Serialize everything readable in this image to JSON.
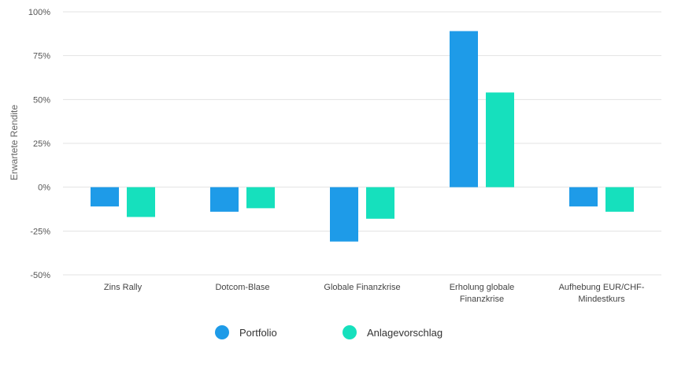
{
  "chart_data": {
    "type": "bar",
    "ylabel": "Erwartete Rendite",
    "ylim": [
      -50,
      100
    ],
    "yticks": [
      100,
      75,
      50,
      25,
      0,
      -25,
      -50
    ],
    "ytick_labels": [
      "100%",
      "75%",
      "50%",
      "25%",
      "0%",
      "-25%",
      "-50%"
    ],
    "grid": true,
    "legend_position": "bottom-center",
    "categories": [
      [
        "Zins Rally"
      ],
      [
        "Dotcom-Blase"
      ],
      [
        "Globale Finanzkrise"
      ],
      [
        "Erholung globale",
        "Finanzkrise"
      ],
      [
        "Aufhebung EUR/CHF-",
        "Mindestkurs"
      ]
    ],
    "series": [
      {
        "name": "Portfolio",
        "color": "#1e9be8",
        "values": [
          -11,
          -14,
          -31,
          89,
          -11
        ]
      },
      {
        "name": "Anlagevorschlag",
        "color": "#16e0bd",
        "values": [
          -17,
          -12,
          -18,
          54,
          -14
        ]
      }
    ]
  }
}
